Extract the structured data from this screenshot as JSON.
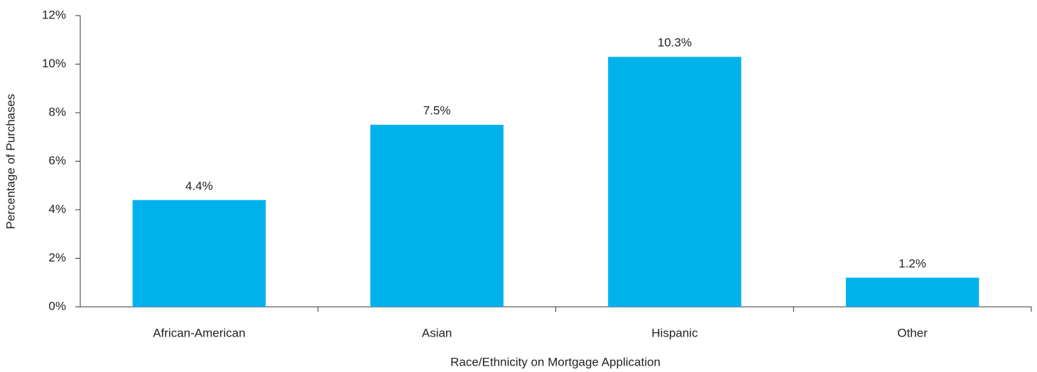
{
  "chart_data": {
    "type": "bar",
    "x_label": "Race/Ethnicity on Mortgage Application",
    "y_label": "Percentage of Purchases",
    "categories": [
      "African-American",
      "Asian",
      "Hispanic",
      "Other"
    ],
    "values": [
      4.4,
      7.5,
      10.3,
      1.2
    ],
    "value_labels": [
      "4.4%",
      "7.5%",
      "10.3%",
      "1.2%"
    ],
    "color": "#00b2ec",
    "ylim": [
      0,
      12
    ],
    "yticks": [
      {
        "value": 0,
        "label": "0%"
      },
      {
        "value": 2,
        "label": "2%"
      },
      {
        "value": 4,
        "label": "4%"
      },
      {
        "value": 6,
        "label": "6%"
      },
      {
        "value": 8,
        "label": "8%"
      },
      {
        "value": 10,
        "label": "10%"
      },
      {
        "value": 12,
        "label": "12%"
      }
    ],
    "grid": false
  }
}
